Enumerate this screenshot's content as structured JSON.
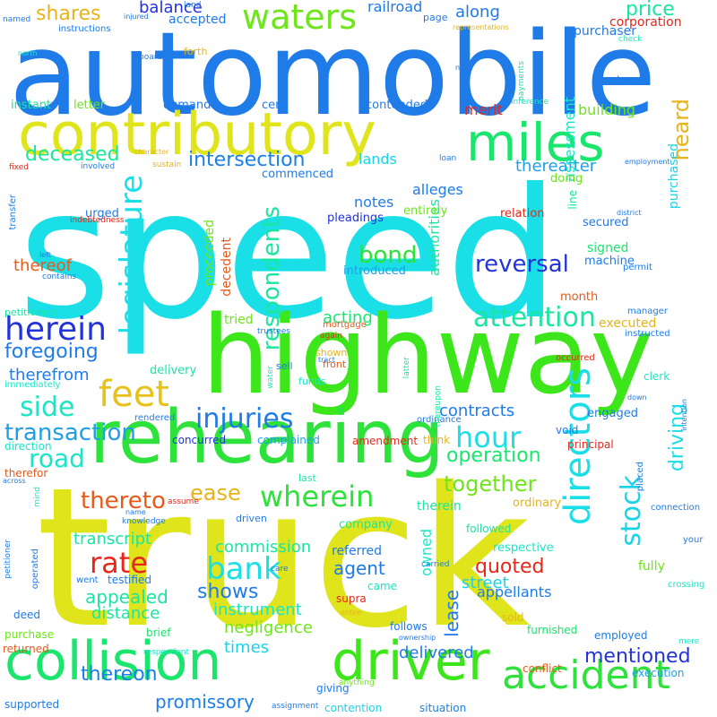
{
  "words": [
    {
      "text": "speed",
      "color": "#1adfe6"
    },
    {
      "text": "truck",
      "color": "#dfe41b"
    },
    {
      "text": "automobile",
      "color": "#1f7be8"
    },
    {
      "text": "highway",
      "color": "#3de61a"
    },
    {
      "text": "rehearing",
      "color": "#2de23a"
    },
    {
      "text": "contributory",
      "color": "#dfe41b"
    },
    {
      "text": "collision",
      "color": "#1ae66d"
    },
    {
      "text": "driver",
      "color": "#3de61a"
    },
    {
      "text": "miles",
      "color": "#1ae66d"
    },
    {
      "text": "accident",
      "color": "#2de23a"
    },
    {
      "text": "directors",
      "color": "#1adfe6"
    },
    {
      "text": "waters",
      "color": "#6ee61a"
    },
    {
      "text": "legislature",
      "color": "#1adfe6"
    },
    {
      "text": "feet",
      "color": "#e6c21a"
    },
    {
      "text": "herein",
      "color": "#2233d9"
    },
    {
      "text": "attention",
      "color": "#1ae6a0"
    },
    {
      "text": "bank",
      "color": "#1adfe6"
    },
    {
      "text": "hour",
      "color": "#1adfe6"
    },
    {
      "text": "wherein",
      "color": "#2de23a"
    },
    {
      "text": "injuries",
      "color": "#1f7be8"
    },
    {
      "text": "side",
      "color": "#1ae6c6"
    },
    {
      "text": "rate",
      "color": "#e6271a"
    },
    {
      "text": "reversal",
      "color": "#2233d9"
    },
    {
      "text": "stock",
      "color": "#1ad3e6"
    },
    {
      "text": "road",
      "color": "#1ae6c6"
    },
    {
      "text": "respondents",
      "color": "#1ae6a0"
    },
    {
      "text": "transaction",
      "color": "#1f9fe8"
    },
    {
      "text": "thereto",
      "color": "#e65a1a"
    },
    {
      "text": "ease",
      "color": "#e6b41a"
    },
    {
      "text": "together",
      "color": "#6ee61a"
    },
    {
      "text": "bond",
      "color": "#2de23a"
    },
    {
      "text": "heard",
      "color": "#e6b41a"
    },
    {
      "text": "shares",
      "color": "#e6b41a"
    },
    {
      "text": "price",
      "color": "#1ae6a0"
    },
    {
      "text": "intersection",
      "color": "#1a7fe6"
    },
    {
      "text": "mentioned",
      "color": "#2233d9"
    },
    {
      "text": "foregoing",
      "color": "#1f7be8"
    },
    {
      "text": "driving",
      "color": "#1adfe6"
    },
    {
      "text": "deceased",
      "color": "#1ae6a0"
    },
    {
      "text": "thereon",
      "color": "#1a7fe6"
    },
    {
      "text": "shows",
      "color": "#1f7be8"
    },
    {
      "text": "quoted",
      "color": "#e6271a"
    },
    {
      "text": "operation",
      "color": "#1ae66d"
    },
    {
      "text": "lease",
      "color": "#1f7be8"
    },
    {
      "text": "promissory",
      "color": "#1a7fe6"
    },
    {
      "text": "agent",
      "color": "#1f7be8"
    },
    {
      "text": "appealed",
      "color": "#1ae6a0"
    },
    {
      "text": "transcript",
      "color": "#1ae6a0"
    },
    {
      "text": "negligence",
      "color": "#6ee61a"
    },
    {
      "text": "delivered",
      "color": "#1f7be8"
    },
    {
      "text": "times",
      "color": "#1ad3e6"
    },
    {
      "text": "acting",
      "color": "#1ae66d"
    },
    {
      "text": "distance",
      "color": "#1ae6a0"
    },
    {
      "text": "balance",
      "color": "#2233d9"
    },
    {
      "text": "along",
      "color": "#1f7be8"
    },
    {
      "text": "contracts",
      "color": "#1f7be8"
    },
    {
      "text": "thereafter",
      "color": "#1f9fe8"
    },
    {
      "text": "thereof",
      "color": "#e65a1a"
    },
    {
      "text": "street",
      "color": "#1ad3e6"
    },
    {
      "text": "instrument",
      "color": "#1ae6c6"
    },
    {
      "text": "commission",
      "color": "#1ae6a0"
    },
    {
      "text": "therefrom",
      "color": "#1f7be8"
    },
    {
      "text": "owned",
      "color": "#1ae6c6"
    },
    {
      "text": "authorities",
      "color": "#1ae6a0"
    },
    {
      "text": "alleges",
      "color": "#1f7be8"
    },
    {
      "text": "lands",
      "color": "#1ad3e6"
    },
    {
      "text": "notes",
      "color": "#1f7be8"
    },
    {
      "text": "merit",
      "color": "#e6271a"
    },
    {
      "text": "assessment",
      "color": "#1ae6c6"
    },
    {
      "text": "building",
      "color": "#6ee61a"
    },
    {
      "text": "appellants",
      "color": "#1f7be8"
    },
    {
      "text": "railroad",
      "color": "#1f7be8"
    },
    {
      "text": "accepted",
      "color": "#1f7be8"
    },
    {
      "text": "purchased",
      "color": "#1ad3e6"
    },
    {
      "text": "signed",
      "color": "#1ae66d"
    },
    {
      "text": "executed",
      "color": "#e6b41a"
    },
    {
      "text": "proceeded",
      "color": "#6ee61a"
    },
    {
      "text": "decedent",
      "color": "#e65a1a"
    },
    {
      "text": "tried",
      "color": "#6ee61a"
    },
    {
      "text": "referred",
      "color": "#1f7be8"
    },
    {
      "text": "therein",
      "color": "#1ae6a0"
    },
    {
      "text": "fully",
      "color": "#6ee61a"
    },
    {
      "text": "corporation",
      "color": "#e6271a"
    },
    {
      "text": "purchaser",
      "color": "#1f7be8"
    },
    {
      "text": "knew",
      "color": "#1a7fe6"
    },
    {
      "text": "instant",
      "color": "#1ae6a0"
    },
    {
      "text": "letter",
      "color": "#6ee61a"
    },
    {
      "text": "cent",
      "color": "#1f7be8"
    },
    {
      "text": "contended",
      "color": "#1f7be8"
    },
    {
      "text": "demand",
      "color": "#1f7be8"
    },
    {
      "text": "commenced",
      "color": "#1f7be8"
    },
    {
      "text": "doing",
      "color": "#6ee61a"
    },
    {
      "text": "entirely",
      "color": "#6ee61a"
    },
    {
      "text": "relation",
      "color": "#e6271a"
    },
    {
      "text": "secured",
      "color": "#1f7be8"
    },
    {
      "text": "machine",
      "color": "#1f7be8"
    },
    {
      "text": "introduced",
      "color": "#1f9fe8"
    },
    {
      "text": "pleadings",
      "color": "#2233d9"
    },
    {
      "text": "urged",
      "color": "#1f7be8"
    },
    {
      "text": "month",
      "color": "#e65a1a"
    },
    {
      "text": "engaged",
      "color": "#1a7fe6"
    },
    {
      "text": "delivery",
      "color": "#1ae6a0"
    },
    {
      "text": "concurred",
      "color": "#2233d9"
    },
    {
      "text": "complained",
      "color": "#1f9fe8"
    },
    {
      "text": "amendment",
      "color": "#e6271a"
    },
    {
      "text": "think",
      "color": "#e6b41a"
    },
    {
      "text": "void",
      "color": "#1f7be8"
    },
    {
      "text": "principal",
      "color": "#e6271a"
    },
    {
      "text": "company",
      "color": "#1ae6a0"
    },
    {
      "text": "ordinary",
      "color": "#e6b41a"
    },
    {
      "text": "followed",
      "color": "#1ae6a0"
    },
    {
      "text": "respective",
      "color": "#1ae6c6"
    },
    {
      "text": "testified",
      "color": "#1f7be8"
    },
    {
      "text": "supra",
      "color": "#e6271a"
    },
    {
      "text": "came",
      "color": "#1ae6c6"
    },
    {
      "text": "sold",
      "color": "#e6b41a"
    },
    {
      "text": "follows",
      "color": "#1f7be8"
    },
    {
      "text": "furnished",
      "color": "#1ae66d"
    },
    {
      "text": "conflict",
      "color": "#e65a1a"
    },
    {
      "text": "brief",
      "color": "#1ae66d"
    },
    {
      "text": "giving",
      "color": "#1f7be8"
    },
    {
      "text": "situation",
      "color": "#1a7fe6"
    },
    {
      "text": "contention",
      "color": "#1ad3e6"
    },
    {
      "text": "supported",
      "color": "#1f7be8"
    },
    {
      "text": "deed",
      "color": "#1f7be8"
    },
    {
      "text": "returned",
      "color": "#e65a1a"
    },
    {
      "text": "purchase",
      "color": "#6ee61a"
    },
    {
      "text": "direction",
      "color": "#1ae6c6"
    },
    {
      "text": "therefor",
      "color": "#e65a1a"
    },
    {
      "text": "petitioners",
      "color": "#1ae6a0"
    },
    {
      "text": "last",
      "color": "#1ae6a0"
    },
    {
      "text": "employed",
      "color": "#1f7be8"
    },
    {
      "text": "execution",
      "color": "#1f9fe8"
    },
    {
      "text": "manager",
      "color": "#1f7be8"
    },
    {
      "text": "occurred",
      "color": "#e6271a"
    },
    {
      "text": "instructed",
      "color": "#1f7be8"
    },
    {
      "text": "clerk",
      "color": "#1ae6c6"
    },
    {
      "text": "permit",
      "color": "#1f7be8"
    },
    {
      "text": "line",
      "color": "#1ae6a0"
    },
    {
      "text": "sell",
      "color": "#1f7be8"
    },
    {
      "text": "funds",
      "color": "#1ae6c6"
    },
    {
      "text": "front",
      "color": "#e65a1a"
    },
    {
      "text": "shown",
      "color": "#e6b41a"
    },
    {
      "text": "again",
      "color": "#e6271a"
    },
    {
      "text": "mortgage",
      "color": "#e65a1a"
    },
    {
      "text": "trustees",
      "color": "#1f7be8"
    },
    {
      "text": "immediately",
      "color": "#1ae6c6"
    },
    {
      "text": "operated",
      "color": "#1f7be8"
    },
    {
      "text": "driven",
      "color": "#1f7be8"
    },
    {
      "text": "assume",
      "color": "#e6271a"
    },
    {
      "text": "knowledge",
      "color": "#1f7be8"
    },
    {
      "text": "went",
      "color": "#1f7be8"
    },
    {
      "text": "rendered",
      "color": "#1f7be8"
    },
    {
      "text": "ordinance",
      "color": "#1f7be8"
    },
    {
      "text": "connection",
      "color": "#1f7be8"
    },
    {
      "text": "crossing",
      "color": "#1ae6c6"
    },
    {
      "text": "placed",
      "color": "#1f7be8"
    },
    {
      "text": "carried",
      "color": "#1a7fe6"
    },
    {
      "text": "your",
      "color": "#1f7be8"
    },
    {
      "text": "mere",
      "color": "#1ae6c6"
    },
    {
      "text": "transfer",
      "color": "#1f7be8"
    },
    {
      "text": "indebtedness",
      "color": "#e6271a"
    },
    {
      "text": "involved",
      "color": "#1f7be8"
    },
    {
      "text": "sustain",
      "color": "#e6b41a"
    },
    {
      "text": "character",
      "color": "#e6b41a"
    },
    {
      "text": "fixed",
      "color": "#e6271a"
    },
    {
      "text": "contains",
      "color": "#1f7be8"
    },
    {
      "text": "left",
      "color": "#1f7be8"
    },
    {
      "text": "named",
      "color": "#1f7be8"
    },
    {
      "text": "instructions",
      "color": "#1f7be8"
    },
    {
      "text": "injured",
      "color": "#1f7be8"
    },
    {
      "text": "land",
      "color": "#1f7be8"
    },
    {
      "text": "page",
      "color": "#1f7be8"
    },
    {
      "text": "north",
      "color": "#1ae6c6"
    },
    {
      "text": "board",
      "color": "#1f7be8"
    },
    {
      "text": "forth",
      "color": "#e6b41a"
    },
    {
      "text": "representations",
      "color": "#e6b41a"
    },
    {
      "text": "check",
      "color": "#1ae6c6"
    },
    {
      "text": "note",
      "color": "#1f7be8"
    },
    {
      "text": "payments",
      "color": "#1ae6a0"
    },
    {
      "text": "inference",
      "color": "#1ae6c6"
    },
    {
      "text": "loan",
      "color": "#1f7be8"
    },
    {
      "text": "tract",
      "color": "#1f7be8"
    },
    {
      "text": "district",
      "color": "#1f7be8"
    },
    {
      "text": "employment",
      "color": "#1f7be8"
    },
    {
      "text": "water",
      "color": "#1ae6c6"
    },
    {
      "text": "latter",
      "color": "#1ae6a0"
    },
    {
      "text": "thereupon",
      "color": "#1ae6a0"
    },
    {
      "text": "down",
      "color": "#1f7be8"
    },
    {
      "text": "intention",
      "color": "#1f7be8"
    },
    {
      "text": "name",
      "color": "#1f7be8"
    },
    {
      "text": "mind",
      "color": "#1ae6c6"
    },
    {
      "text": "across",
      "color": "#1f7be8"
    },
    {
      "text": "care",
      "color": "#1f7be8"
    },
    {
      "text": "petitioner",
      "color": "#1f7be8"
    },
    {
      "text": "entire",
      "color": "#e6b41a"
    },
    {
      "text": "ownership",
      "color": "#1f7be8"
    },
    {
      "text": "respondent",
      "color": "#1ae6c6"
    },
    {
      "text": "anything",
      "color": "#6ee61a"
    },
    {
      "text": "assignment",
      "color": "#1f7be8"
    }
  ]
}
